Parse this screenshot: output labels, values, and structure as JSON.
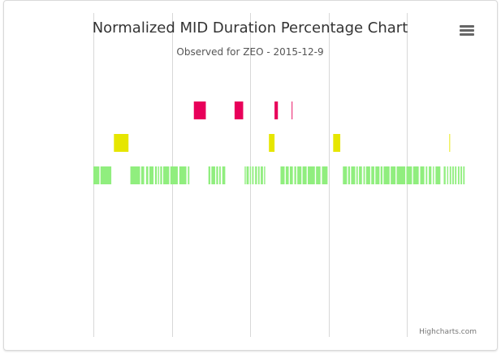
{
  "chart_data": {
    "type": "bar",
    "title": "Normalized MID Duration Percentage Chart",
    "subtitle": "Observed for ZEO - 2015-12-9",
    "xlabel": "",
    "ylabel": "",
    "xlim": [
      0,
      100
    ],
    "x_gridlines": [
      0,
      21,
      42,
      63,
      84
    ],
    "grid": true,
    "legend": "none",
    "series": [
      {
        "color": "#e8005a",
        "segments": [
          [
            26.9,
            30.1
          ],
          [
            37.8,
            40.1
          ],
          [
            48.5,
            49.4
          ],
          [
            53.1,
            53.3
          ]
        ]
      },
      {
        "color": "#e6e600",
        "segments": [
          [
            5.5,
            9.4
          ],
          [
            47.0,
            48.5
          ],
          [
            64.2,
            66.1
          ],
          [
            95.3,
            95.5
          ]
        ]
      },
      {
        "color": "#90ee7e",
        "segments": [
          [
            0.0,
            1.6
          ],
          [
            1.9,
            4.8
          ],
          [
            9.9,
            12.5
          ],
          [
            12.8,
            13.6
          ],
          [
            14.1,
            14.7
          ],
          [
            15.0,
            16.1
          ],
          [
            16.5,
            17.0
          ],
          [
            17.3,
            17.6
          ],
          [
            17.9,
            18.4
          ],
          [
            18.7,
            20.3
          ],
          [
            20.6,
            22.6
          ],
          [
            23.0,
            24.9
          ],
          [
            25.3,
            25.7
          ],
          [
            30.8,
            31.3
          ],
          [
            31.6,
            32.6
          ],
          [
            32.9,
            33.4
          ],
          [
            33.7,
            34.1
          ],
          [
            34.5,
            35.3
          ],
          [
            40.5,
            40.8
          ],
          [
            41.0,
            41.6
          ],
          [
            41.9,
            42.2
          ],
          [
            42.5,
            42.9
          ],
          [
            43.3,
            43.8
          ],
          [
            44.1,
            44.5
          ],
          [
            44.8,
            45.4
          ],
          [
            45.7,
            46.0
          ],
          [
            50.1,
            51.2
          ],
          [
            51.5,
            52.3
          ],
          [
            52.6,
            53.4
          ],
          [
            53.8,
            54.3
          ],
          [
            54.6,
            55.7
          ],
          [
            56.0,
            57.1
          ],
          [
            57.4,
            59.3
          ],
          [
            59.6,
            60.8
          ],
          [
            61.2,
            62.7
          ],
          [
            66.8,
            67.9
          ],
          [
            68.2,
            68.7
          ],
          [
            69.0,
            70.1
          ],
          [
            70.4,
            70.8
          ],
          [
            71.1,
            71.9
          ],
          [
            72.3,
            72.7
          ],
          [
            73.0,
            74.1
          ],
          [
            74.4,
            75.2
          ],
          [
            75.5,
            76.6
          ],
          [
            76.9,
            77.4
          ],
          [
            77.7,
            79.3
          ],
          [
            79.6,
            80.9
          ],
          [
            81.2,
            83.5
          ],
          [
            83.8,
            85.3
          ],
          [
            85.6,
            87.1
          ],
          [
            87.5,
            88.6
          ],
          [
            89.0,
            89.4
          ],
          [
            89.8,
            90.5
          ],
          [
            90.9,
            91.2
          ],
          [
            91.6,
            92.9
          ],
          [
            93.8,
            94.3
          ],
          [
            94.7,
            95.0
          ],
          [
            95.4,
            95.8
          ],
          [
            96.1,
            96.5
          ],
          [
            96.8,
            97.2
          ],
          [
            97.6,
            98.0
          ],
          [
            98.3,
            98.7
          ],
          [
            99.0,
            99.4
          ]
        ]
      }
    ]
  },
  "exporting": {
    "menu_icon": "hamburger-menu-icon"
  },
  "credits": {
    "text": "Highcharts.com"
  }
}
